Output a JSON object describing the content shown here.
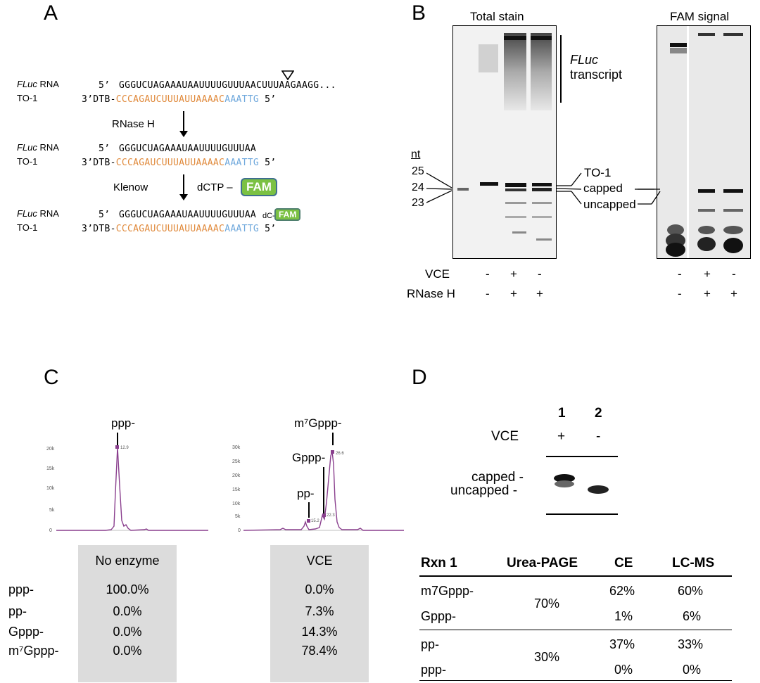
{
  "panels": {
    "a": "A",
    "b": "B",
    "c": "C",
    "d": "D"
  },
  "schemeA": {
    "fluc_label_italic": "FLuc",
    "rna_suffix": " RNA",
    "to1_label": "TO-1",
    "five_prime": "5’",
    "three_prime": "3’",
    "seq1": "GGGUCUAGAAAUAAUUUUGUUUAACUUUAAGAAGG...",
    "seq_cleaved": "GGGUCUAGAAAUAAUUUUGUUUAA",
    "seq_ext_dc": "dC-",
    "dtb": "DTB-",
    "to1_orange": "CCCAGAUCUUUAUUAAAAC",
    "to1_blue": "AAATTG",
    "step1": "RNase H",
    "step2": "Klenow",
    "dctp": "dCTP –",
    "fam": "FAM"
  },
  "panelB": {
    "total_stain_title": "Total stain",
    "fam_signal_title": "FAM signal",
    "fluc_italic": "FLuc",
    "transcript": "transcript",
    "nt": "nt",
    "nt_markers": [
      "25",
      "24",
      "23"
    ],
    "band_labels": {
      "to1": "TO-1",
      "capped": "capped",
      "uncapped": "uncapped"
    },
    "row_vce": "VCE",
    "row_rnaseh": "RNase H",
    "vce_signs": [
      "-",
      "+",
      "-"
    ],
    "rnaseh_signs": [
      "-",
      "+",
      "+"
    ]
  },
  "panelC": {
    "left_peak_label": "ppp-",
    "left_peak_value": "12.9",
    "left_y_ticks": [
      "20k",
      "15k",
      "10k",
      "5k",
      "0"
    ],
    "right_labels": {
      "m7gppp": "m⁷Gppp-",
      "gppp": "Gppp-",
      "pp": "pp-"
    },
    "right_peak_values": [
      "26.6",
      "22.3",
      "15.2"
    ],
    "right_y_ticks": [
      "30k",
      "25k",
      "20k",
      "15k",
      "10k",
      "5k",
      "0"
    ],
    "row_labels": [
      "ppp-",
      "pp-",
      "Gppp-",
      "m⁷Gppp-"
    ],
    "no_enzyme": {
      "header": "No enzyme",
      "values": [
        "100.0%",
        "0.0%",
        "0.0%",
        "0.0%"
      ]
    },
    "vce": {
      "header": "VCE",
      "values": [
        "0.0%",
        "7.3%",
        "14.3%",
        "78.4%"
      ]
    }
  },
  "panelD": {
    "lane1": "1",
    "lane2": "2",
    "vce": "VCE",
    "plus": "+",
    "minus": "-",
    "capped": "capped -",
    "uncapped": "uncapped -",
    "table": {
      "headers": [
        "Rxn 1",
        "Urea-PAGE",
        "CE",
        "LC-MS"
      ],
      "rows": [
        {
          "label": "m7Gppp-",
          "page": "70%",
          "ce": "62%",
          "lcms": "60%"
        },
        {
          "label": "Gppp-",
          "ce": "1%",
          "lcms": "6%"
        },
        {
          "label": "pp-",
          "page": "30%",
          "ce": "37%",
          "lcms": "33%"
        },
        {
          "label": "ppp-",
          "ce": "0%",
          "lcms": "0%"
        }
      ]
    }
  }
}
